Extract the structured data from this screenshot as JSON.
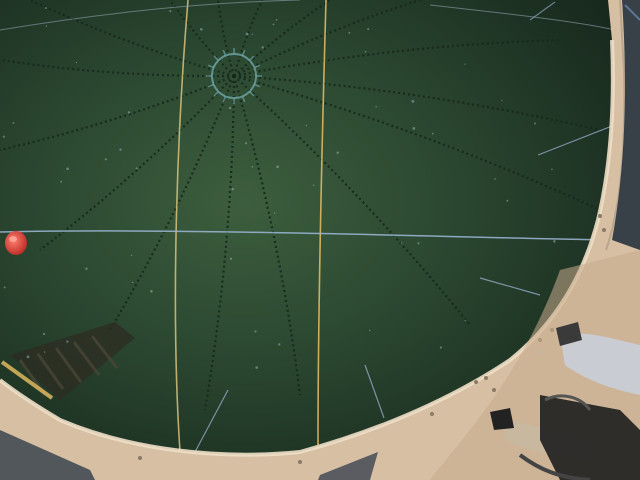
{
  "scene": {
    "kind": "fisheye photo of an underwater tank ceiling viewed from below",
    "colors": {
      "water_center": "#3d5e3e",
      "water_mid": "#2a4630",
      "water_edge": "#16261a",
      "rim": "#d9c3a8",
      "rim_shadow": "#a8927a",
      "yellow_line": "#d8c27a",
      "blue_line": "#9fb8d8",
      "rib": "#1b2e22",
      "buoy": "#e0403a"
    },
    "elements": [
      "ceiling-dome",
      "radial-ribs",
      "center-ring",
      "guide-lines",
      "rim-frame",
      "red-buoy",
      "diver-legs",
      "ladder-structure"
    ]
  }
}
